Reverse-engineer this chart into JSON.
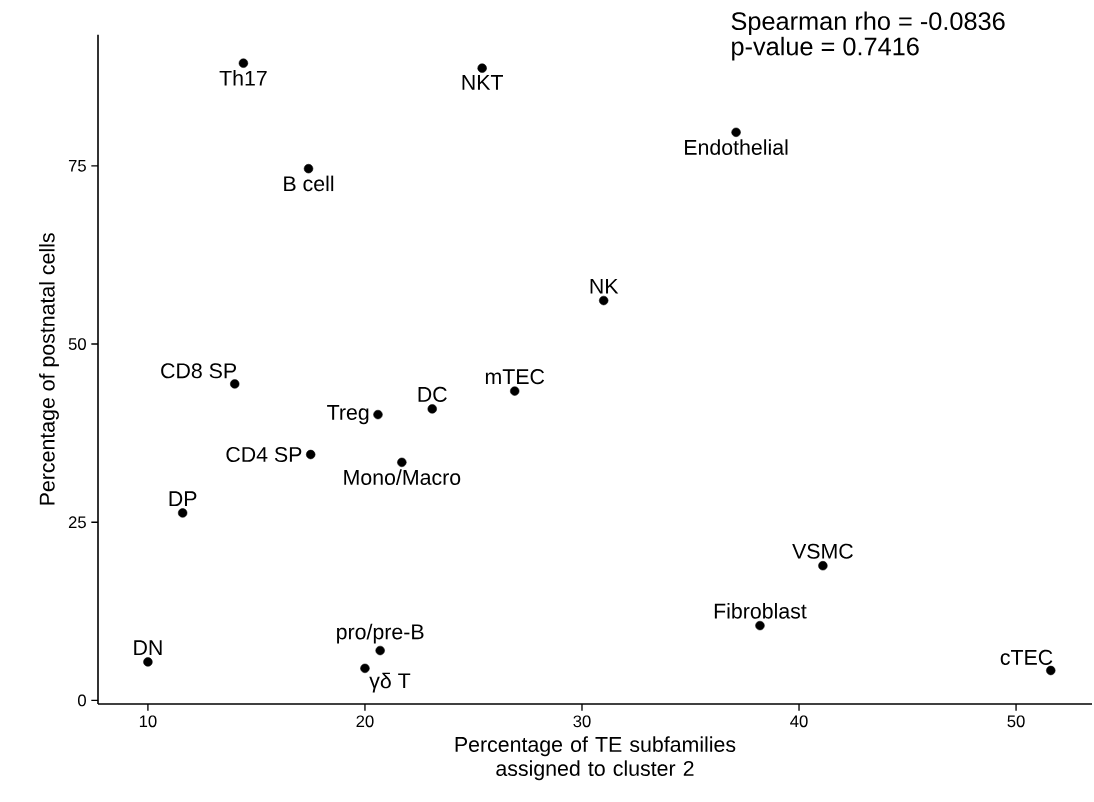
{
  "chart_data": {
    "type": "scatter",
    "xlabel": "Percentage of TE subfamilies assigned to cluster 2",
    "ylabel": "Percentage of postnatal cells",
    "x": [
      14.4,
      25.4,
      37.1,
      17.4,
      31.0,
      14.0,
      26.9,
      23.1,
      20.6,
      17.5,
      21.7,
      11.6,
      41.1,
      38.2,
      20.7,
      20.0,
      10.0,
      51.6
    ],
    "values": [
      89.4,
      88.7,
      79.7,
      74.6,
      56.1,
      44.4,
      43.4,
      40.9,
      40.1,
      34.5,
      33.4,
      26.3,
      18.9,
      10.5,
      7.0,
      4.5,
      5.4,
      4.2
    ],
    "color": "#000000",
    "marker": "circle",
    "grid": false,
    "xlim": [
      7.7,
      53.5
    ],
    "ylim": [
      -0.5,
      93.4
    ],
    "xticks": [
      10,
      20,
      30,
      40,
      50
    ],
    "yticks": [
      0,
      25,
      50,
      75
    ],
    "annotations": [
      "Spearman rho = -0.0836",
      "p-value = 0.7416",
      {
        "text": "Th17",
        "x": 14.4,
        "y": 89.4
      },
      {
        "text": "NKT",
        "x": 25.4,
        "y": 88.7
      },
      {
        "text": "Endothelial",
        "x": 37.1,
        "y": 79.7
      },
      {
        "text": "B cell",
        "x": 17.4,
        "y": 74.6
      },
      {
        "text": "NK",
        "x": 31.0,
        "y": 56.1
      },
      {
        "text": "CD8 SP",
        "x": 14.0,
        "y": 44.4
      },
      {
        "text": "mTEC",
        "x": 26.9,
        "y": 43.4
      },
      {
        "text": "DC",
        "x": 23.1,
        "y": 40.9
      },
      {
        "text": "Treg",
        "x": 20.6,
        "y": 40.1
      },
      {
        "text": "CD4 SP",
        "x": 17.5,
        "y": 34.5
      },
      {
        "text": "Mono/Macro",
        "x": 21.7,
        "y": 33.4
      },
      {
        "text": "DP",
        "x": 11.6,
        "y": 26.3
      },
      {
        "text": "VSMC",
        "x": 41.1,
        "y": 18.9
      },
      {
        "text": "Fibroblast",
        "x": 38.2,
        "y": 10.5
      },
      {
        "text": "pro/pre-B",
        "x": 20.7,
        "y": 7.0
      },
      {
        "text": "γδ T",
        "x": 20.0,
        "y": 4.5
      },
      {
        "text": "DN",
        "x": 10.0,
        "y": 5.4
      },
      {
        "text": "cTEC",
        "x": 51.6,
        "y": 4.2
      }
    ]
  }
}
